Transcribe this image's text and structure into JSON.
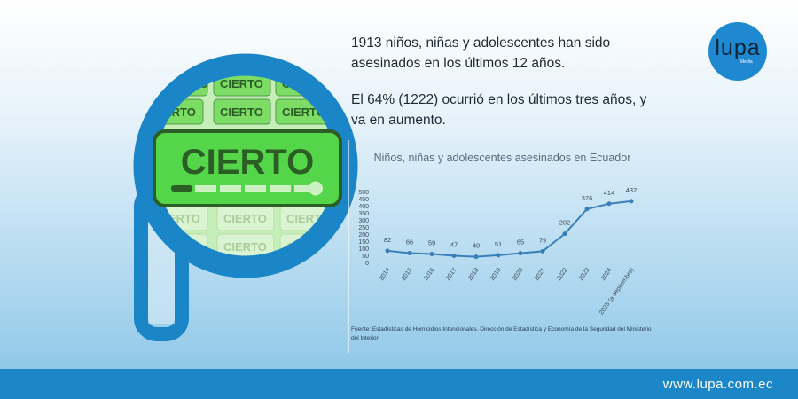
{
  "text": {
    "paragraph1": "1913 niños, niñas y adolescentes han sido asesinados en los últimos 12 años.",
    "paragraph2": "El 64% (1222) ocurrió en los últimos tres años, y va en aumento."
  },
  "logo": {
    "word": "lupa",
    "sub": "Media"
  },
  "badge": {
    "label": "CIERTO",
    "progress": 1.0,
    "colors": {
      "fill": "#55d64a",
      "border": "#2b5e24"
    }
  },
  "footer": {
    "url": "www.lupa.com.ec"
  },
  "colors": {
    "brand_blue": "#1c87c8",
    "line": "#3b7fb8"
  },
  "chart_data": {
    "type": "line",
    "title": "Niños, niñas y adolescentes asesinados en Ecuador",
    "categories": [
      "2014",
      "2015",
      "2016",
      "2017",
      "2018",
      "2019",
      "2020",
      "2021",
      "2022",
      "2023",
      "2024",
      "2025 (a septiembre)"
    ],
    "values": [
      82,
      66,
      59,
      47,
      40,
      51,
      65,
      79,
      202,
      376,
      414,
      432
    ],
    "yticks": [
      "500",
      "450",
      "400",
      "350",
      "300",
      "250",
      "200",
      "150",
      "100",
      "50",
      "0"
    ],
    "ylim": [
      0,
      500
    ],
    "grid": false,
    "data_labels": true,
    "source": "Fuente: Estadísticas de Homicidios Intencionales. Dirección de Estadística y Economía de la Seguridad del Ministerio del Interior."
  }
}
